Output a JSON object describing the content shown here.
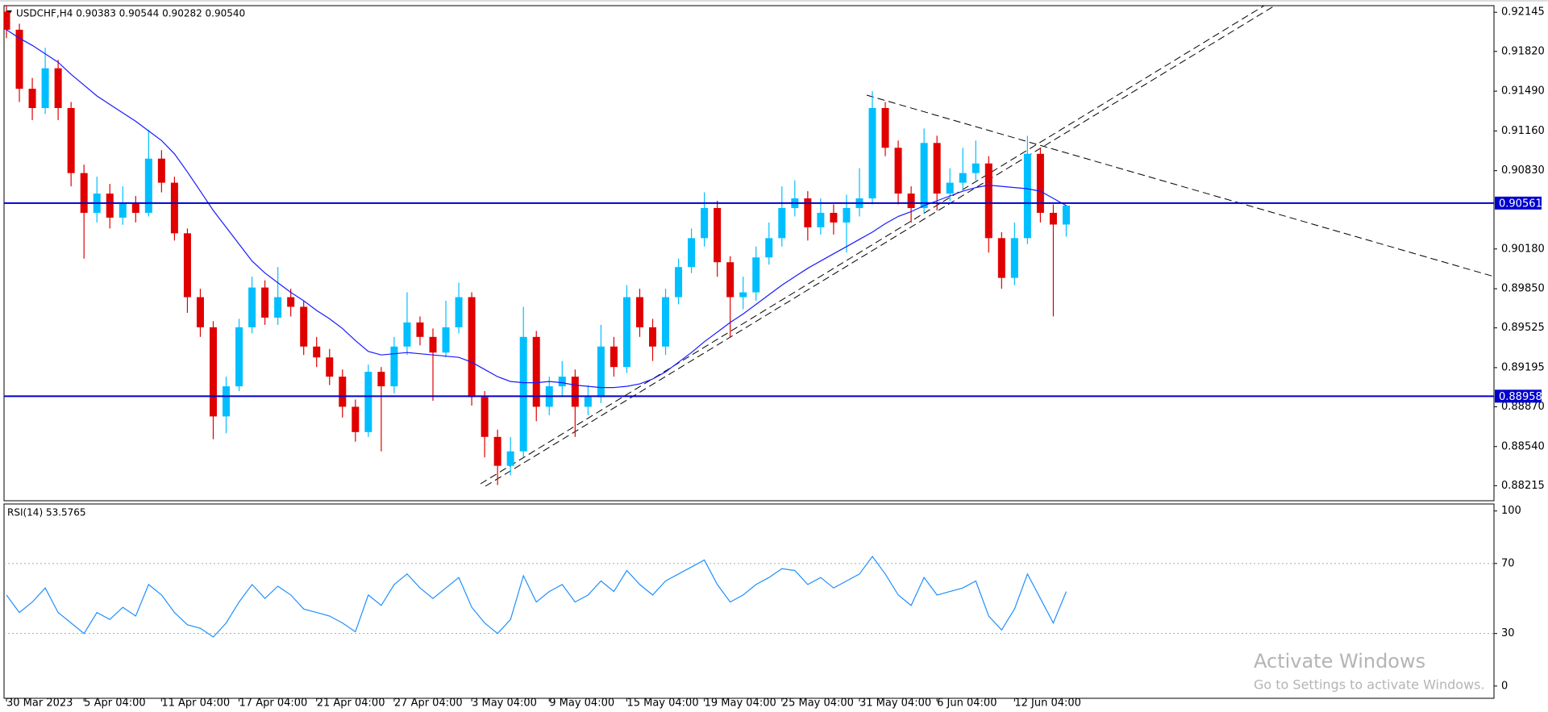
{
  "chart_data": [
    {
      "type": "candlestick",
      "title": "USDCHF,H4  0.90383 0.90544 0.90282 0.90540",
      "categories": [
        "30 Mar 2023",
        null,
        null,
        null,
        null,
        null,
        "5 Apr 04:00",
        null,
        null,
        null,
        null,
        null,
        "11 Apr 04:00",
        null,
        null,
        null,
        null,
        null,
        "17 Apr 04:00",
        null,
        null,
        null,
        null,
        null,
        "21 Apr 04:00",
        null,
        null,
        null,
        null,
        null,
        "27 Apr 04:00",
        null,
        null,
        null,
        null,
        null,
        "3 May 04:00",
        null,
        null,
        null,
        null,
        null,
        "9 May 04:00",
        null,
        null,
        null,
        null,
        null,
        "15 May 04:00",
        null,
        null,
        null,
        null,
        null,
        "19 May 04:00",
        null,
        null,
        null,
        null,
        null,
        "25 May 04:00",
        null,
        null,
        null,
        null,
        null,
        "31 May 04:00",
        null,
        null,
        null,
        null,
        null,
        "6 Jun 04:00",
        null,
        null,
        null,
        null,
        null,
        "12 Jun 04:00",
        null,
        null,
        null,
        null
      ],
      "open": [
        0.9215,
        0.92,
        0.9151,
        0.9135,
        0.9168,
        0.9135,
        0.9081,
        0.9048,
        0.9064,
        0.9044,
        0.9056,
        0.9048,
        0.9093,
        0.9073,
        0.9031,
        0.8978,
        0.8953,
        0.8879,
        0.8904,
        0.8953,
        0.8986,
        0.8961,
        0.8978,
        0.897,
        0.8937,
        0.8928,
        0.8912,
        0.8887,
        0.8866,
        0.8916,
        0.8904,
        0.8937,
        0.8957,
        0.8945,
        0.8932,
        0.8953,
        0.8978,
        0.8895,
        0.8862,
        0.8838,
        0.885,
        0.8945,
        0.8887,
        0.8904,
        0.8912,
        0.8887,
        0.8895,
        0.8937,
        0.892,
        0.8978,
        0.8953,
        0.8937,
        0.8978,
        0.9003,
        0.9027,
        0.9052,
        0.9007,
        0.8978,
        0.8982,
        0.9011,
        0.9027,
        0.9052,
        0.906,
        0.9036,
        0.9048,
        0.904,
        0.9052,
        0.906,
        0.9135,
        0.9102,
        0.9064,
        0.9052,
        0.9106,
        0.9064,
        0.9073,
        0.9081,
        0.9089,
        0.9027,
        0.8994,
        0.9027,
        0.9097,
        0.9048,
        0.90383
      ],
      "high": [
        0.922,
        0.9205,
        0.916,
        0.9185,
        0.9175,
        0.914,
        0.9088,
        0.9078,
        0.9072,
        0.907,
        0.9062,
        0.9117,
        0.91,
        0.9078,
        0.9035,
        0.8985,
        0.8958,
        0.8912,
        0.896,
        0.8995,
        0.8992,
        0.9003,
        0.8985,
        0.8975,
        0.8945,
        0.8935,
        0.8918,
        0.8893,
        0.8922,
        0.892,
        0.8945,
        0.8982,
        0.8962,
        0.8952,
        0.8975,
        0.899,
        0.8982,
        0.89,
        0.8868,
        0.8862,
        0.897,
        0.895,
        0.8912,
        0.8925,
        0.8918,
        0.8905,
        0.8955,
        0.8945,
        0.8988,
        0.8985,
        0.896,
        0.8985,
        0.901,
        0.9035,
        0.9065,
        0.9058,
        0.9012,
        0.8995,
        0.902,
        0.904,
        0.907,
        0.9075,
        0.9066,
        0.906,
        0.9055,
        0.9063,
        0.9085,
        0.9149,
        0.914,
        0.9108,
        0.907,
        0.9118,
        0.9112,
        0.9085,
        0.9102,
        0.9108,
        0.9095,
        0.9032,
        0.904,
        0.9112,
        0.9102,
        0.9055,
        0.90544
      ],
      "low": [
        0.9193,
        0.914,
        0.9125,
        0.913,
        0.9125,
        0.907,
        0.901,
        0.904,
        0.9035,
        0.9038,
        0.904,
        0.9045,
        0.9065,
        0.9025,
        0.8965,
        0.8945,
        0.886,
        0.8865,
        0.89,
        0.8948,
        0.8955,
        0.8955,
        0.8962,
        0.893,
        0.892,
        0.8905,
        0.8878,
        0.8858,
        0.8862,
        0.885,
        0.8898,
        0.893,
        0.8938,
        0.8892,
        0.8928,
        0.8948,
        0.8888,
        0.8845,
        0.8822,
        0.883,
        0.8845,
        0.8875,
        0.888,
        0.8895,
        0.8862,
        0.888,
        0.889,
        0.8912,
        0.8915,
        0.8945,
        0.8925,
        0.893,
        0.8972,
        0.8998,
        0.902,
        0.8995,
        0.8945,
        0.8968,
        0.8975,
        0.9005,
        0.902,
        0.9045,
        0.9025,
        0.903,
        0.903,
        0.9015,
        0.9045,
        0.9055,
        0.9095,
        0.9055,
        0.904,
        0.9048,
        0.905,
        0.9058,
        0.9068,
        0.9075,
        0.9015,
        0.8985,
        0.8988,
        0.9022,
        0.904,
        0.8962,
        0.90282
      ],
      "close": [
        0.92,
        0.9151,
        0.9135,
        0.9168,
        0.9135,
        0.9081,
        0.9048,
        0.9064,
        0.9044,
        0.9056,
        0.9048,
        0.9093,
        0.9073,
        0.9031,
        0.8978,
        0.8953,
        0.8879,
        0.8904,
        0.8953,
        0.8986,
        0.8961,
        0.8978,
        0.897,
        0.8937,
        0.8928,
        0.8912,
        0.8887,
        0.8866,
        0.8916,
        0.8904,
        0.8937,
        0.8957,
        0.8945,
        0.8932,
        0.8953,
        0.8978,
        0.8895,
        0.8862,
        0.8838,
        0.885,
        0.8945,
        0.8887,
        0.8904,
        0.8912,
        0.8887,
        0.8895,
        0.8937,
        0.892,
        0.8978,
        0.8953,
        0.8937,
        0.8978,
        0.9003,
        0.9027,
        0.9052,
        0.9007,
        0.8978,
        0.8982,
        0.9011,
        0.9027,
        0.9052,
        0.906,
        0.9036,
        0.9048,
        0.904,
        0.9052,
        0.906,
        0.9135,
        0.9102,
        0.9064,
        0.9052,
        0.9106,
        0.9064,
        0.9073,
        0.9081,
        0.9089,
        0.9027,
        0.8994,
        0.9027,
        0.9097,
        0.9048,
        0.90383,
        0.9054
      ],
      "up_color": "#00bfff",
      "down_color": "#e00000",
      "lines": [
        {
          "color": "#1a1aff",
          "values": [
            0.92,
            0.9193,
            0.9187,
            0.918,
            0.9173,
            0.9163,
            0.9154,
            0.9145,
            0.9138,
            0.9131,
            0.9124,
            0.9116,
            0.9108,
            0.9097,
            0.9082,
            0.9066,
            0.905,
            0.9036,
            0.9022,
            0.9008,
            0.8998,
            0.899,
            0.8982,
            0.8975,
            0.8967,
            0.896,
            0.8952,
            0.8942,
            0.8933,
            0.893,
            0.8931,
            0.8932,
            0.8931,
            0.893,
            0.8929,
            0.8928,
            0.8924,
            0.8918,
            0.8912,
            0.8908,
            0.8907,
            0.8907,
            0.8908,
            0.8907,
            0.8905,
            0.8904,
            0.8903,
            0.8903,
            0.8904,
            0.8906,
            0.891,
            0.8916,
            0.8924,
            0.8932,
            0.8941,
            0.8949,
            0.8957,
            0.8964,
            0.8972,
            0.898,
            0.8988,
            0.8995,
            0.9002,
            0.9008,
            0.9014,
            0.902,
            0.9026,
            0.9032,
            0.9039,
            0.9045,
            0.9049,
            0.9054,
            0.9058,
            0.9062,
            0.9066,
            0.9069,
            0.9071,
            0.907,
            0.9069,
            0.9068,
            0.9066,
            0.906,
            0.9054
          ]
        }
      ],
      "hlines": [
        0.90561,
        0.88958
      ],
      "hline_color": "#0000cd",
      "ylim": [
        0.8809,
        0.922
      ],
      "yticks": [
        0.92145,
        {
          "value": 0.9182,
          "label": "0.91820"
        },
        {
          "value": 0.9149,
          "label": "0.91490"
        },
        {
          "value": 0.9116,
          "label": "0.91160"
        },
        {
          "value": 0.9083,
          "label": "0.90830"
        },
        {
          "value": 0.9018,
          "label": "0.90180"
        },
        {
          "value": 0.8985,
          "label": "0.89850"
        },
        0.89525,
        0.89195,
        {
          "value": 0.8887,
          "label": "0.88870"
        },
        {
          "value": 0.8854,
          "label": "0.88540"
        },
        0.88215
      ]
    },
    {
      "type": "line",
      "title": "RSI(14) 53.5765",
      "color": "#1e90ff",
      "values": [
        52,
        42,
        48,
        56,
        42,
        36,
        30,
        42,
        38,
        45,
        40,
        58,
        52,
        42,
        35,
        33,
        28,
        36,
        48,
        58,
        50,
        57,
        52,
        44,
        42,
        40,
        36,
        31,
        52,
        46,
        58,
        64,
        56,
        50,
        56,
        62,
        45,
        36,
        30,
        38,
        63,
        48,
        54,
        58,
        48,
        52,
        60,
        54,
        66,
        58,
        52,
        60,
        64,
        68,
        72,
        58,
        48,
        52,
        58,
        62,
        67,
        66,
        58,
        62,
        56,
        60,
        64,
        74,
        64,
        52,
        46,
        62,
        52,
        54,
        56,
        60,
        40,
        32,
        44,
        64,
        50,
        36,
        54
      ],
      "levels": [
        30,
        70
      ],
      "ylim": [
        -7,
        104
      ],
      "yticks": [
        0,
        30,
        70,
        100
      ]
    }
  ],
  "watermark": {
    "title": "Activate Windows",
    "subtitle": "Go to Settings to activate Windows."
  }
}
